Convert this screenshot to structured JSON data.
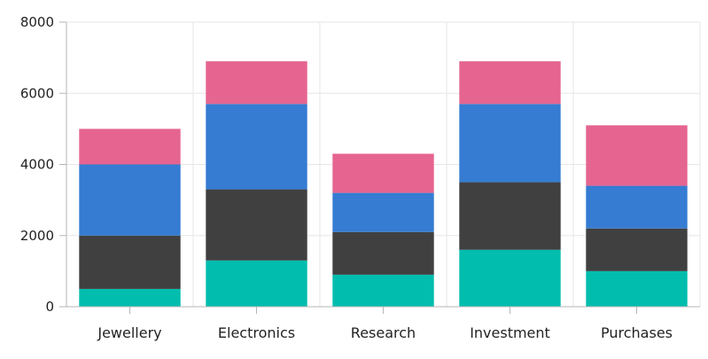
{
  "chart_data": {
    "type": "bar",
    "stacked": true,
    "categories": [
      "Jewellery",
      "Electronics",
      "Research",
      "Investment",
      "Purchases"
    ],
    "series": [
      {
        "values": [
          500,
          1300,
          900,
          1600,
          1000
        ],
        "color": "#00bdae"
      },
      {
        "values": [
          1500,
          2000,
          1200,
          1900,
          1200
        ],
        "color": "#404041"
      },
      {
        "values": [
          2000,
          2400,
          1100,
          2200,
          1200
        ],
        "color": "#357cd2"
      },
      {
        "values": [
          1000,
          1200,
          1100,
          1200,
          1700
        ],
        "color": "#e56590"
      }
    ],
    "ylim": [
      0,
      8000
    ],
    "yticks": [
      0,
      2000,
      4000,
      6000,
      8000
    ],
    "grid": true,
    "legend": false
  }
}
